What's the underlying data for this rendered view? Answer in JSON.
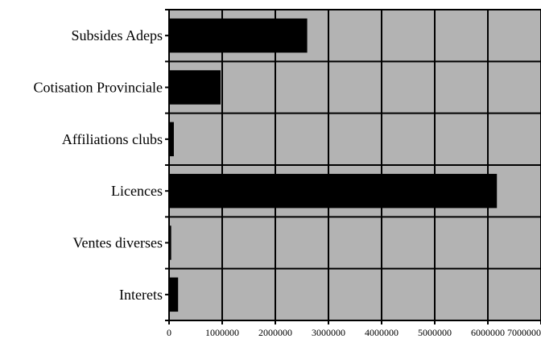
{
  "chart_data": {
    "type": "bar",
    "orientation": "horizontal",
    "title": "",
    "xlabel": "",
    "ylabel": "",
    "categories": [
      "Subsides Adeps",
      "Cotisation Provinciale",
      "Affiliations clubs",
      "Licences",
      "Ventes diverses",
      "Interets"
    ],
    "values": [
      2600000,
      970000,
      90000,
      6170000,
      40000,
      170000
    ],
    "xlim": [
      0,
      7000000
    ],
    "x_ticks": [
      0,
      1000000,
      2000000,
      3000000,
      4000000,
      5000000,
      6000000,
      7000000
    ],
    "x_tick_labels": [
      "0",
      "1000000",
      "2000000",
      "3000000",
      "4000000",
      "5000000",
      "6000000",
      "7000000"
    ],
    "grid": true,
    "legend": "none",
    "colors": {
      "bar": "#000000",
      "plot_background": "#b3b3b3",
      "gridline": "#000000"
    }
  }
}
